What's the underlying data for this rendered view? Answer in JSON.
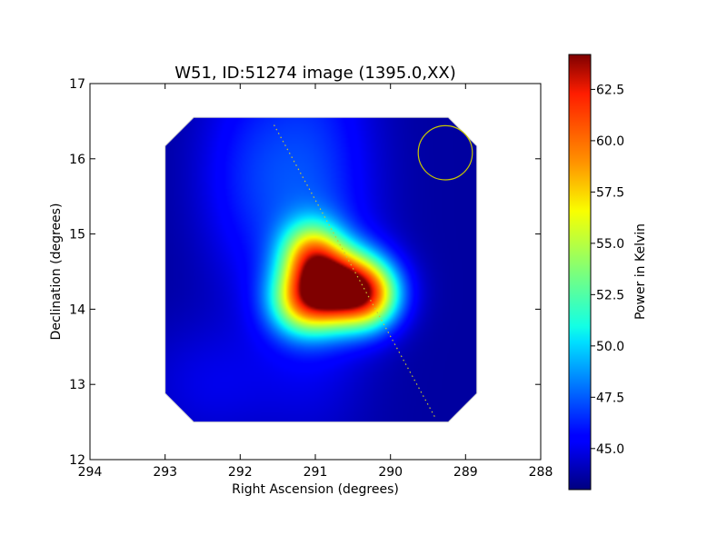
{
  "chart_data": {
    "type": "heatmap",
    "title": "W51, ID:51274 image (1395.0,XX)",
    "xlabel": "Right Ascension (degrees)",
    "ylabel": "Declination (degrees)",
    "xlim": [
      294,
      288
    ],
    "ylim": [
      12,
      17
    ],
    "x_ticks": [
      "294",
      "293",
      "292",
      "291",
      "290",
      "289",
      "288"
    ],
    "y_ticks": [
      "12",
      "13",
      "14",
      "15",
      "16",
      "17"
    ],
    "x_tick_values": [
      294,
      293,
      292,
      291,
      290,
      289,
      288
    ],
    "y_tick_values": [
      12,
      13,
      14,
      15,
      16,
      17
    ],
    "colormap": "jet",
    "colorbar": {
      "label": "Power in Kelvin",
      "range": [
        43.0,
        64.2
      ],
      "ticks": [
        "45.0",
        "47.5",
        "50.0",
        "52.5",
        "55.0",
        "57.5",
        "60.0",
        "62.5"
      ],
      "tick_values": [
        45.0,
        47.5,
        50.0,
        52.5,
        55.0,
        57.5,
        60.0,
        62.5
      ]
    },
    "map_extent": {
      "ra_range": [
        293.0,
        288.85
      ],
      "dec_range": [
        12.5,
        16.55
      ],
      "corner_cut_deg": 0.38
    },
    "background_level": 43.6,
    "background_components": [
      {
        "ra": 291.0,
        "dec": 15.4,
        "peak": 46.8,
        "sigma_ra": 0.55,
        "sigma_dec": 1.7
      },
      {
        "ra": 291.9,
        "dec": 15.8,
        "peak": 45.8,
        "sigma_ra": 0.5,
        "sigma_dec": 1.0
      },
      {
        "ra": 292.4,
        "dec": 13.0,
        "peak": 44.9,
        "sigma_ra": 0.7,
        "sigma_dec": 0.6
      }
    ],
    "sources": [
      {
        "ra": 290.7,
        "dec": 14.28,
        "peak": 64.2,
        "sigma_ra": 0.42,
        "sigma_dec": 0.34
      },
      {
        "ra": 291.05,
        "dec": 14.75,
        "peak": 53.0,
        "sigma_ra": 0.28,
        "sigma_dec": 0.3
      },
      {
        "ra": 290.25,
        "dec": 14.15,
        "peak": 51.0,
        "sigma_ra": 0.28,
        "sigma_dec": 0.3
      },
      {
        "ra": 291.2,
        "dec": 14.05,
        "peak": 50.5,
        "sigma_ra": 0.3,
        "sigma_dec": 0.3
      }
    ],
    "galactic_plane": {
      "start": {
        "ra": 291.55,
        "dec": 16.45
      },
      "end": {
        "ra": 289.4,
        "dec": 12.55
      },
      "color": "#c8c832",
      "style": "dotted"
    },
    "beam": {
      "ra": 289.27,
      "dec": 16.08,
      "radius_deg": 0.36,
      "color": "#c8c800"
    },
    "colors": {
      "outline": "#cfcfcf",
      "beam": "#c8c800"
    }
  }
}
